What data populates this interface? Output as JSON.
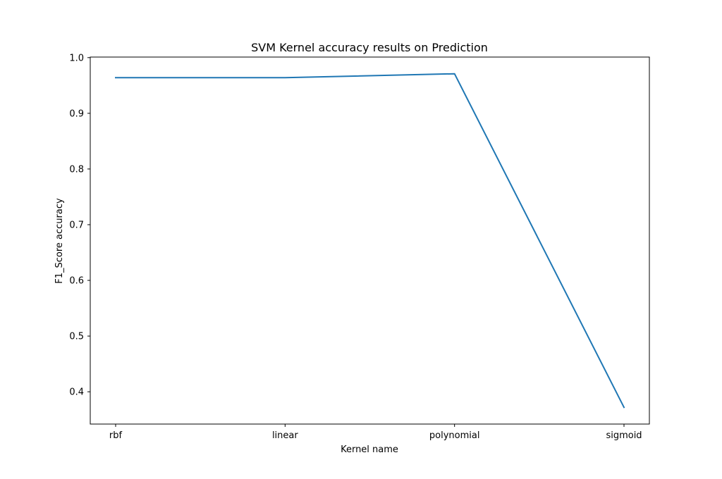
{
  "chart_data": {
    "type": "line",
    "title": "SVM Kernel accuracy results on Prediction",
    "xlabel": "Kernel name",
    "ylabel": "F1_Score accuracy",
    "categories": [
      "rbf",
      "linear",
      "polynomial",
      "sigmoid"
    ],
    "series": [
      {
        "values": [
          0.964,
          0.964,
          0.971,
          0.372
        ],
        "color": "#1f77b4"
      }
    ],
    "ylim": [
      0.342,
      1.001
    ],
    "yticks": [
      0.4,
      0.5,
      0.6,
      0.7,
      0.8,
      0.9,
      1.0
    ],
    "ytick_labels": [
      "0.4",
      "0.5",
      "0.6",
      "0.7",
      "0.8",
      "0.9",
      "1.0"
    ],
    "grid": false,
    "legend": "none"
  }
}
